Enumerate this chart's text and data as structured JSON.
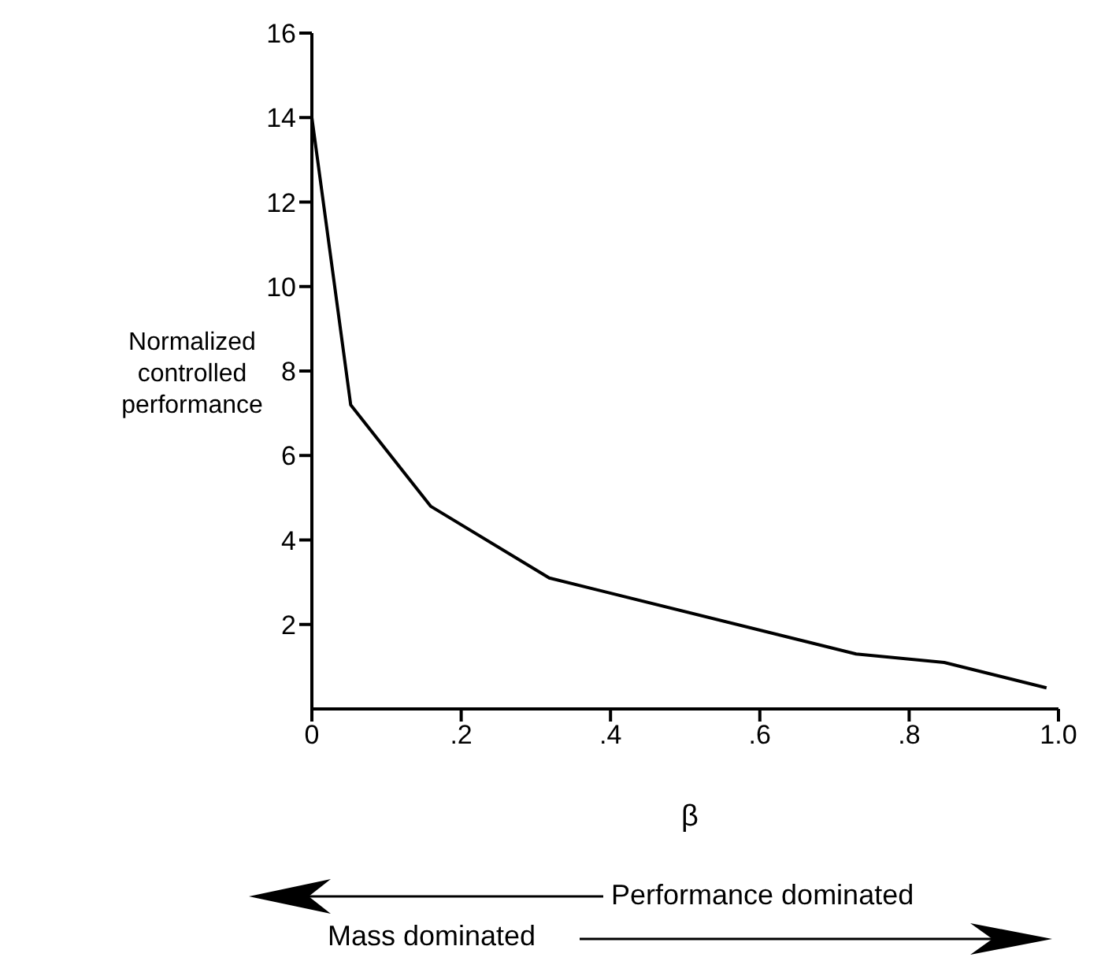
{
  "chart_data": {
    "type": "line",
    "xlabel": "β",
    "ylabel": "Normalized controlled performance",
    "x": [
      0,
      0.052,
      0.159,
      0.318,
      0.729,
      0.847,
      0.984
    ],
    "series": [
      {
        "color": "#000000",
        "values": [
          14,
          7.2,
          4.8,
          3.1,
          1.3,
          1.1,
          0.5
        ]
      }
    ],
    "xlim": [
      0,
      1
    ],
    "ylim": [
      0,
      16
    ],
    "xticks": [
      0,
      {
        "value": 0.2,
        "label": ".2"
      },
      {
        "value": 0.4,
        "label": ".4"
      },
      {
        "value": 0.6,
        "label": ".6"
      },
      {
        "value": 0.8,
        "label": ".8"
      },
      {
        "value": 1,
        "label": "1.0"
      }
    ],
    "yticks": [
      2,
      4,
      6,
      8,
      10,
      12,
      14,
      16
    ],
    "grid": false,
    "marker": "none",
    "line_style": "solid",
    "annotations": [
      "Performance dominated",
      "Mass dominated"
    ]
  }
}
